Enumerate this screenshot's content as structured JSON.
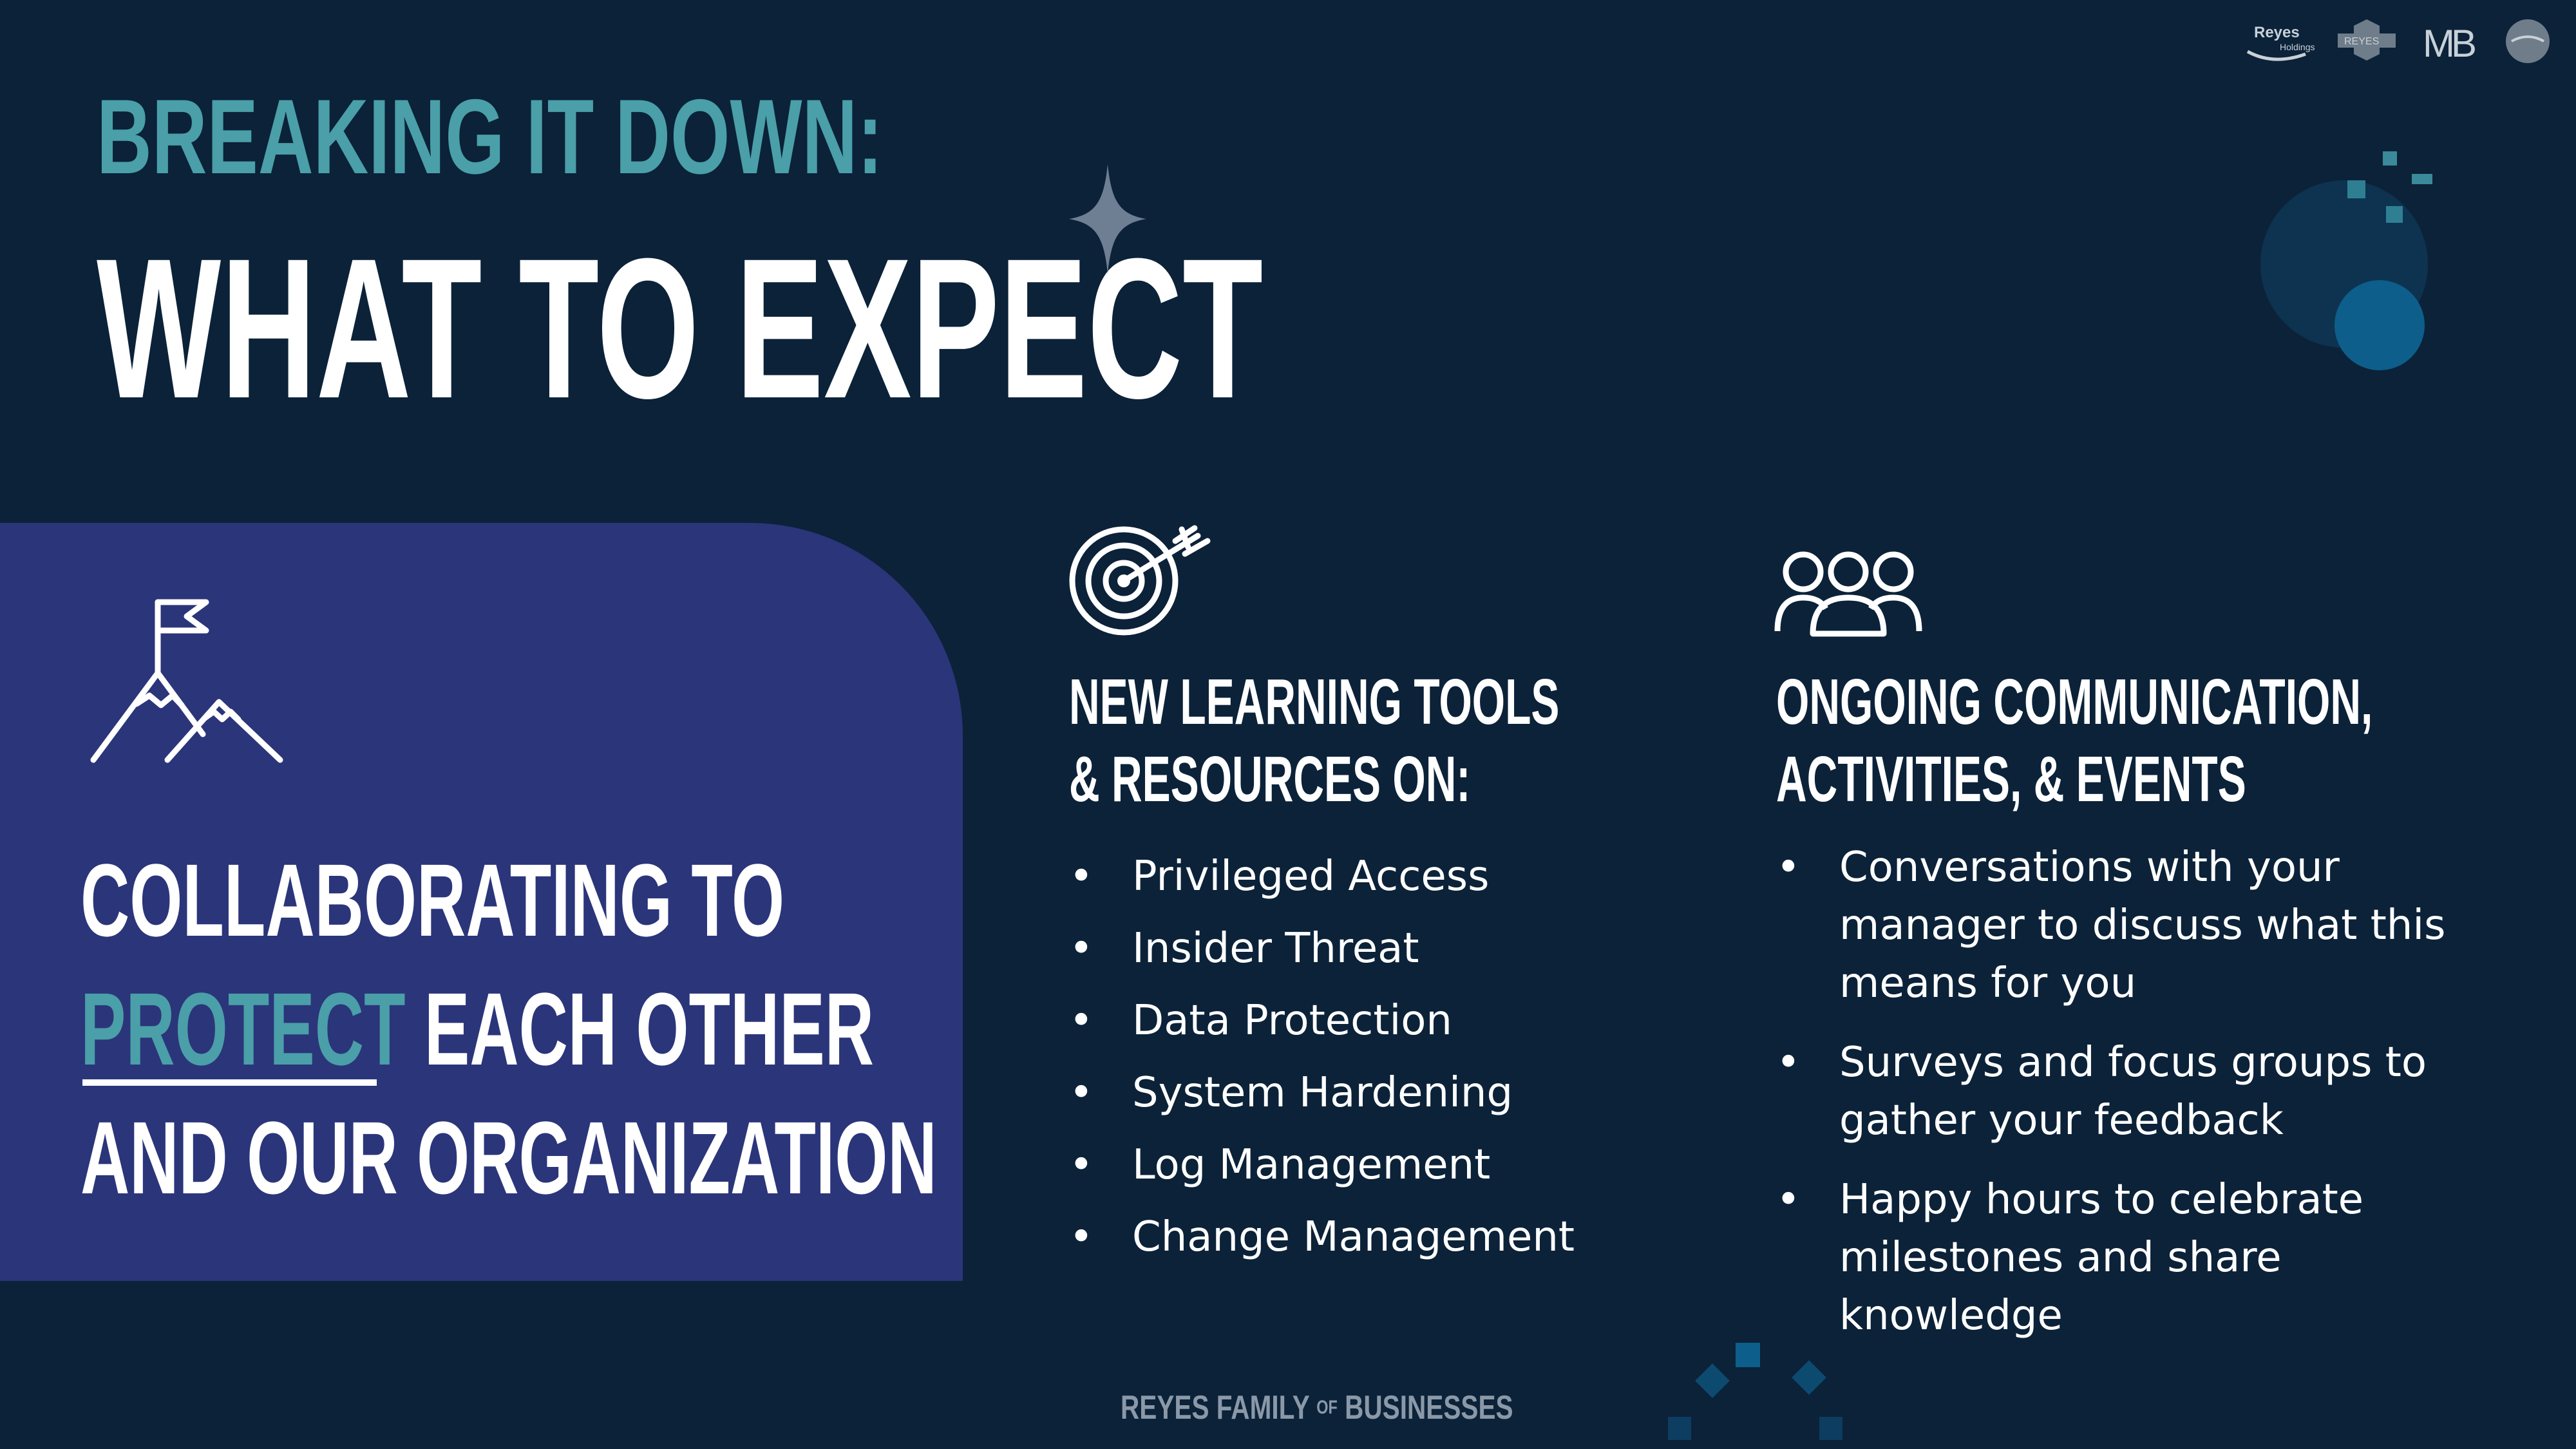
{
  "header": {
    "subtitle": "BREAKING IT DOWN:",
    "title": "WHAT TO EXPECT"
  },
  "left_panel": {
    "line1": "COLLABORATING TO",
    "line2_accent": "PROTECT",
    "line2_rest": "EACH OTHER",
    "line3": "AND OUR ORGANIZATION",
    "icon": "mountain-flag-icon"
  },
  "columns": [
    {
      "icon": "target-arrow-icon",
      "heading": [
        "NEW LEARNING TOOLS",
        "& RESOURCES ON:"
      ],
      "items": [
        "Privileged Access",
        "Insider Threat",
        "Data Protection",
        "System Hardening",
        "Log Management",
        "Change Management"
      ]
    },
    {
      "icon": "people-group-icon",
      "heading": [
        "ONGOING COMMUNICATION,",
        "ACTIVITIES, & EVENTS"
      ],
      "items": [
        "Conversations with your manager to discuss what this means for you",
        "Surveys and focus groups to gather your feedback",
        "Happy hours to celebrate milestones and share knowledge"
      ]
    }
  ],
  "footer": {
    "part1": "REYES FAMILY",
    "part2": "OF",
    "part3": "BUSINESSES"
  },
  "logos": {
    "reyes_holdings_line1": "Reyes",
    "reyes_holdings_line2": "Holdings",
    "reyes": "REYES",
    "mb": "MB"
  },
  "colors": {
    "background": "#0b2239",
    "panel": "#2b357a",
    "accent": "#4a9fa8",
    "text": "#ffffff",
    "footer": "#8a98a8"
  }
}
